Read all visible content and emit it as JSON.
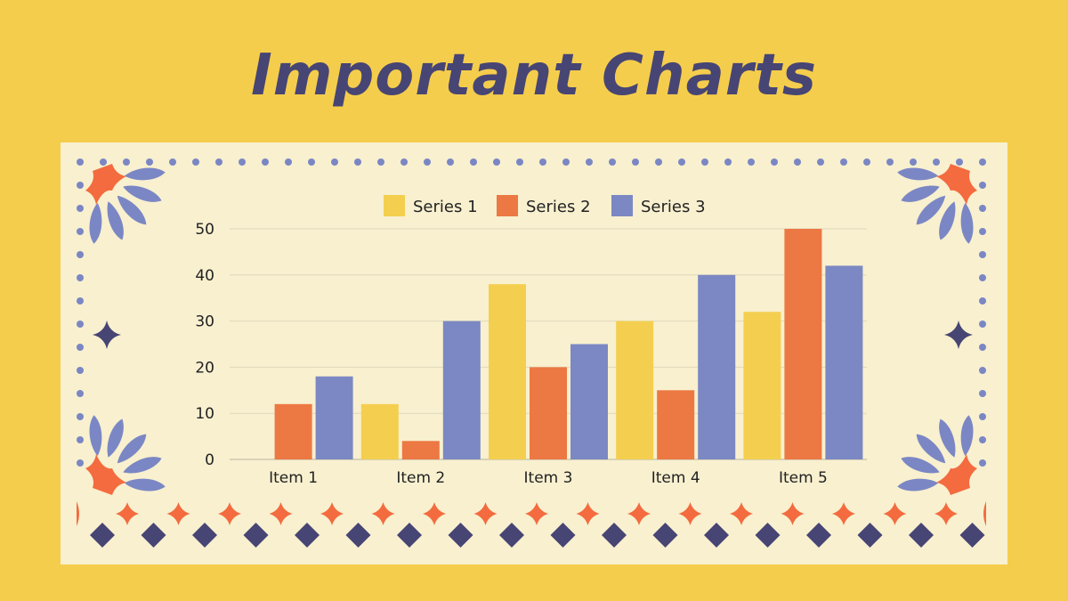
{
  "slide": {
    "title": "Important Charts",
    "colors": {
      "background": "#f5cd4c",
      "panel": "#f8f0cf",
      "title": "#474574",
      "dots": "#7b87c4",
      "accent_orange": "#f36b3f",
      "accent_navy": "#474574"
    }
  },
  "chart_data": {
    "type": "bar",
    "categories": [
      "Item 1",
      "Item 2",
      "Item 3",
      "Item 4",
      "Item 5"
    ],
    "series": [
      {
        "name": "Series 1",
        "color": "#f4cf4f",
        "values": [
          0,
          12,
          38,
          30,
          32
        ]
      },
      {
        "name": "Series 2",
        "color": "#ec7843",
        "values": [
          12,
          4,
          20,
          15,
          50
        ]
      },
      {
        "name": "Series 3",
        "color": "#7b88c3",
        "values": [
          18,
          30,
          25,
          40,
          42
        ]
      }
    ],
    "ylim": [
      0,
      50
    ],
    "yticks": [
      0,
      10,
      20,
      30,
      40,
      50
    ],
    "grid": true,
    "legend": "top-center"
  }
}
